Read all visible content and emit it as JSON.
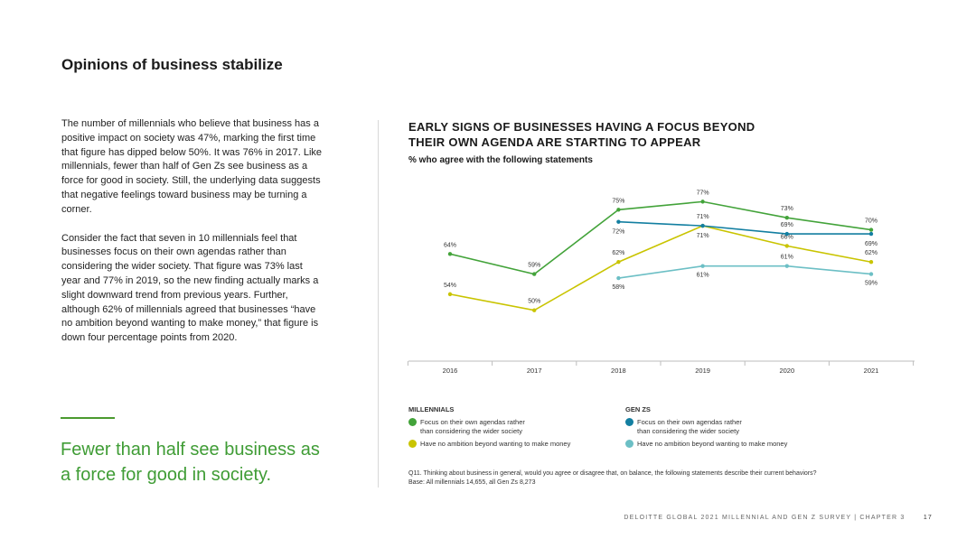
{
  "page": {
    "title": "Opinions of business stabilize",
    "paragraphs": [
      "The number of millennials who believe that business has a positive impact on society was 47%, marking the first time that figure has dipped below 50%. It was 76% in 2017. Like millennials, fewer than half of Gen Zs see business as a force for good in society. Still, the underlying data suggests that negative feelings toward business may be turning a corner.",
      "Consider the fact that seven in 10 millennials feel that businesses focus on their own agendas rather than considering the wider society. That figure was 73% last year and 77% in 2019, so the new finding actually marks a slight downward trend from previous years. Further, although 62% of millennials agreed that businesses “have no ambition beyond wanting to make money,” that figure is down four percentage points from 2020."
    ],
    "pull_quote": "Fewer than half see business as a force for good in society.",
    "footer": "DELOITTE GLOBAL 2021 MILLENNIAL AND GEN Z SURVEY | CHAPTER 3",
    "page_number": "17"
  },
  "legend": {
    "millennials_title": "MILLENNIALS",
    "genz_title": "GEN ZS",
    "focus_label_line1": "Focus on their own agendas rather",
    "focus_label_line2": "than considering the wider society",
    "money_label": "Have no ambition beyond wanting to make money"
  },
  "footnote": {
    "q": "Q11. Thinking about business in general, would you agree or disagree that, on balance, the following statements describe their current behaviors?",
    "base": "Base: All millennials 14,655, all Gen Zs 8,273"
  },
  "colors": {
    "millennials_focus": "#43a33a",
    "millennials_money": "#c9c400",
    "genz_focus": "#137fa1",
    "genz_money": "#6cbfc5",
    "accent": "#3f9c35"
  },
  "chart_data": {
    "type": "line",
    "title": "EARLY SIGNS OF BUSINESSES HAVING A FOCUS BEYOND THEIR OWN AGENDA ARE STARTING TO APPEAR",
    "subtitle": "% who agree with the following statements",
    "categories": [
      "2016",
      "2017",
      "2018",
      "2019",
      "2020",
      "2021"
    ],
    "ylim": [
      45,
      80
    ],
    "grid": false,
    "legend_position": "bottom",
    "series": [
      {
        "name": "Focus on their own agendas rather than considering the wider society",
        "group": "MILLENNIALS",
        "color": "#43a33a",
        "values": [
          64,
          59,
          75,
          77,
          73,
          70
        ]
      },
      {
        "name": "Have no ambition beyond wanting to make money",
        "group": "MILLENNIALS",
        "color": "#c9c400",
        "values": [
          54,
          50,
          62,
          71,
          66,
          62
        ]
      },
      {
        "name": "Focus on their own agendas rather than considering the wider society",
        "group": "GEN ZS",
        "color": "#137fa1",
        "values": [
          null,
          null,
          72,
          71,
          69,
          69
        ]
      },
      {
        "name": "Have no ambition beyond wanting to make money",
        "group": "GEN ZS",
        "color": "#6cbfc5",
        "values": [
          null,
          null,
          58,
          61,
          61,
          59
        ]
      }
    ]
  }
}
